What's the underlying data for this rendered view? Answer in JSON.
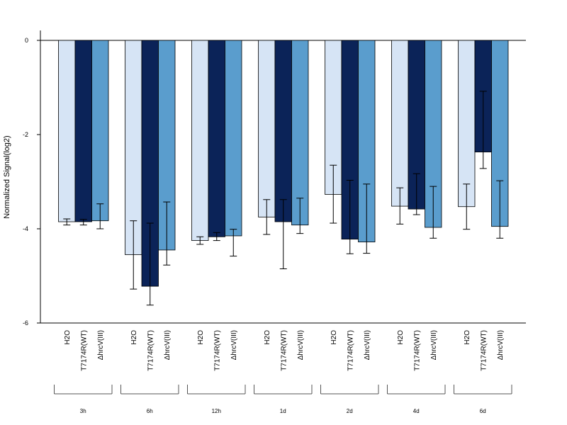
{
  "chart_data": {
    "type": "bar",
    "ylabel": "Normalized Signal(log2)",
    "xlabel": "",
    "ylim": [
      -6,
      0
    ],
    "yticks": [
      0,
      -2,
      -4,
      -6
    ],
    "ytick_labels": [
      "0",
      "-2",
      "-4",
      "-6"
    ],
    "groups": [
      "3h",
      "6h",
      "12h",
      "1d",
      "2d",
      "4d",
      "6d"
    ],
    "series": [
      {
        "name": "H2O",
        "color": "#d6e4f5",
        "values": [
          -3.85,
          -4.55,
          -4.25,
          -3.75,
          -3.27,
          -3.52,
          -3.53
        ],
        "error_low": [
          -3.92,
          -5.28,
          -4.33,
          -4.12,
          -3.88,
          -3.9,
          -4.01
        ],
        "error_high": [
          -3.79,
          -3.83,
          -4.17,
          -3.38,
          -2.65,
          -3.13,
          -3.05
        ]
      },
      {
        "name": "T7174R(WT)",
        "color": "#0b2358",
        "values": [
          -3.85,
          -5.22,
          -4.17,
          -3.85,
          -4.22,
          -3.58,
          -2.37
        ],
        "error_low": [
          -3.92,
          -5.62,
          -4.25,
          -4.85,
          -4.53,
          -3.7,
          -2.72
        ],
        "error_high": [
          -3.8,
          -3.88,
          -4.08,
          -3.38,
          -2.97,
          -2.83,
          -1.08
        ]
      },
      {
        "name": "ΔhrcV(III)",
        "color": "#5a9dcd",
        "values": [
          -3.83,
          -4.45,
          -4.15,
          -3.92,
          -4.28,
          -3.97,
          -3.95
        ],
        "error_low": [
          -4.0,
          -4.77,
          -4.58,
          -4.1,
          -4.52,
          -4.2,
          -4.2
        ],
        "error_high": [
          -3.47,
          -3.43,
          -4.01,
          -3.35,
          -3.05,
          -3.1,
          -2.98
        ]
      }
    ]
  }
}
